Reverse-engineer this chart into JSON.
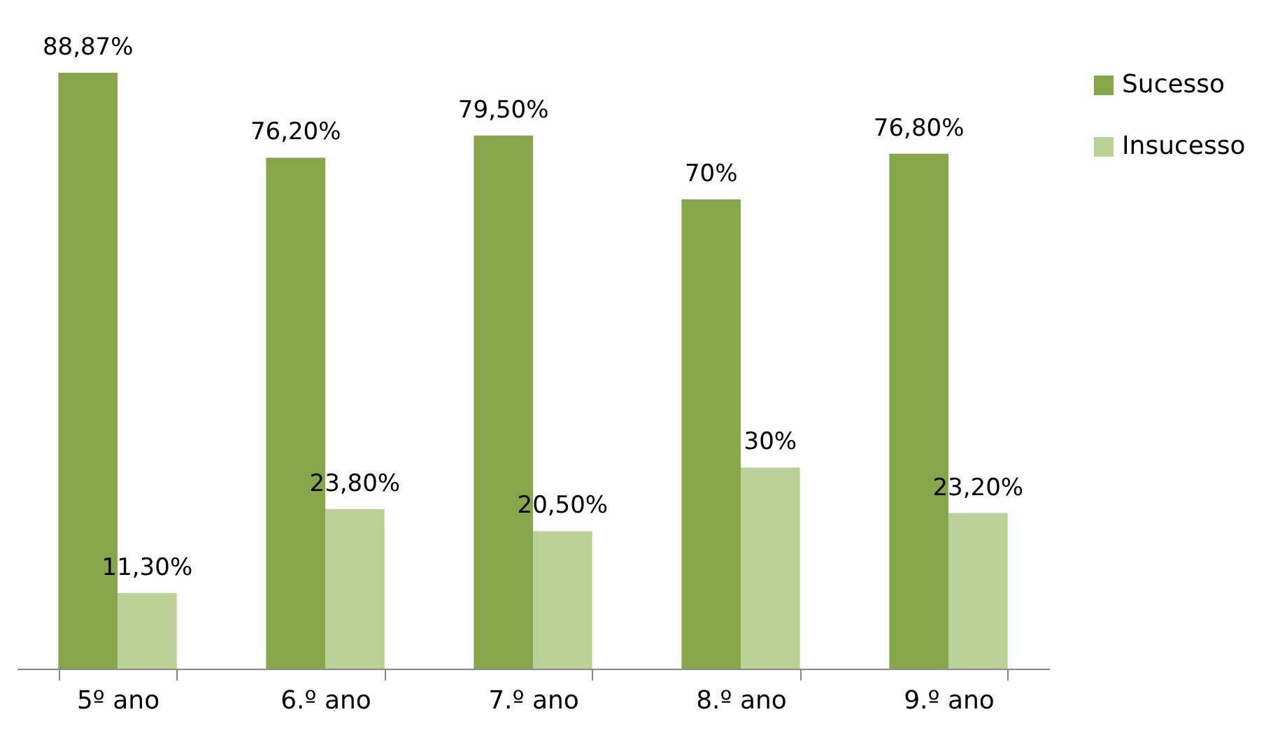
{
  "chart_data": {
    "type": "bar",
    "categories": [
      "5º ano",
      "6.º ano",
      "7.º ano",
      "8.º ano",
      "9.º ano"
    ],
    "series": [
      {
        "name": "Sucesso",
        "color": "#87a64b",
        "values": [
          88.87,
          76.2,
          79.5,
          70,
          76.8
        ],
        "value_labels": [
          "88,87%",
          "76,20%",
          "79,50%",
          "70%",
          "76,80%"
        ]
      },
      {
        "name": "Insucesso",
        "color": "#bad096",
        "values": [
          11.3,
          23.8,
          20.5,
          30,
          23.2
        ],
        "value_labels": [
          "11,30%",
          "23,80%",
          "20,50%",
          "30%",
          "23,20%"
        ]
      }
    ],
    "legend": "right"
  }
}
